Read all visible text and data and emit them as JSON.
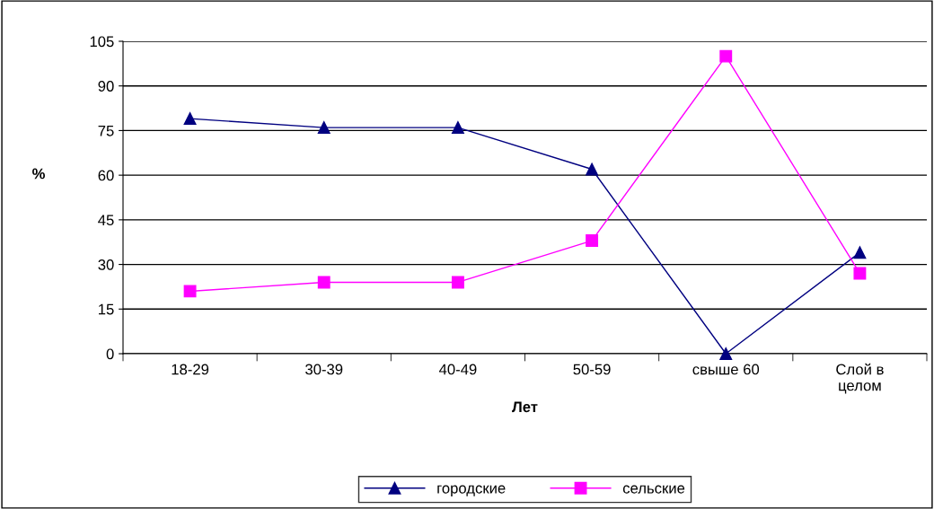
{
  "chart_data": {
    "type": "line",
    "xlabel": "Лет",
    "ylabel": "%",
    "categories": [
      "18-29",
      "30-39",
      "40-49",
      "50-59",
      "свыше 60",
      "Слой в\nцелом"
    ],
    "series": [
      {
        "name": "городские",
        "color": "#000080",
        "marker": "triangle",
        "values": [
          79,
          76,
          76,
          62,
          0,
          34
        ]
      },
      {
        "name": "сельские",
        "color": "#ff00ff",
        "marker": "square",
        "values": [
          21,
          24,
          24,
          38,
          100,
          27
        ]
      }
    ],
    "ylim": [
      0,
      105
    ],
    "yticks": [
      0,
      15,
      30,
      45,
      60,
      75,
      90,
      105
    ],
    "grid": "y",
    "legend": "bottom",
    "line_style": "solid"
  }
}
